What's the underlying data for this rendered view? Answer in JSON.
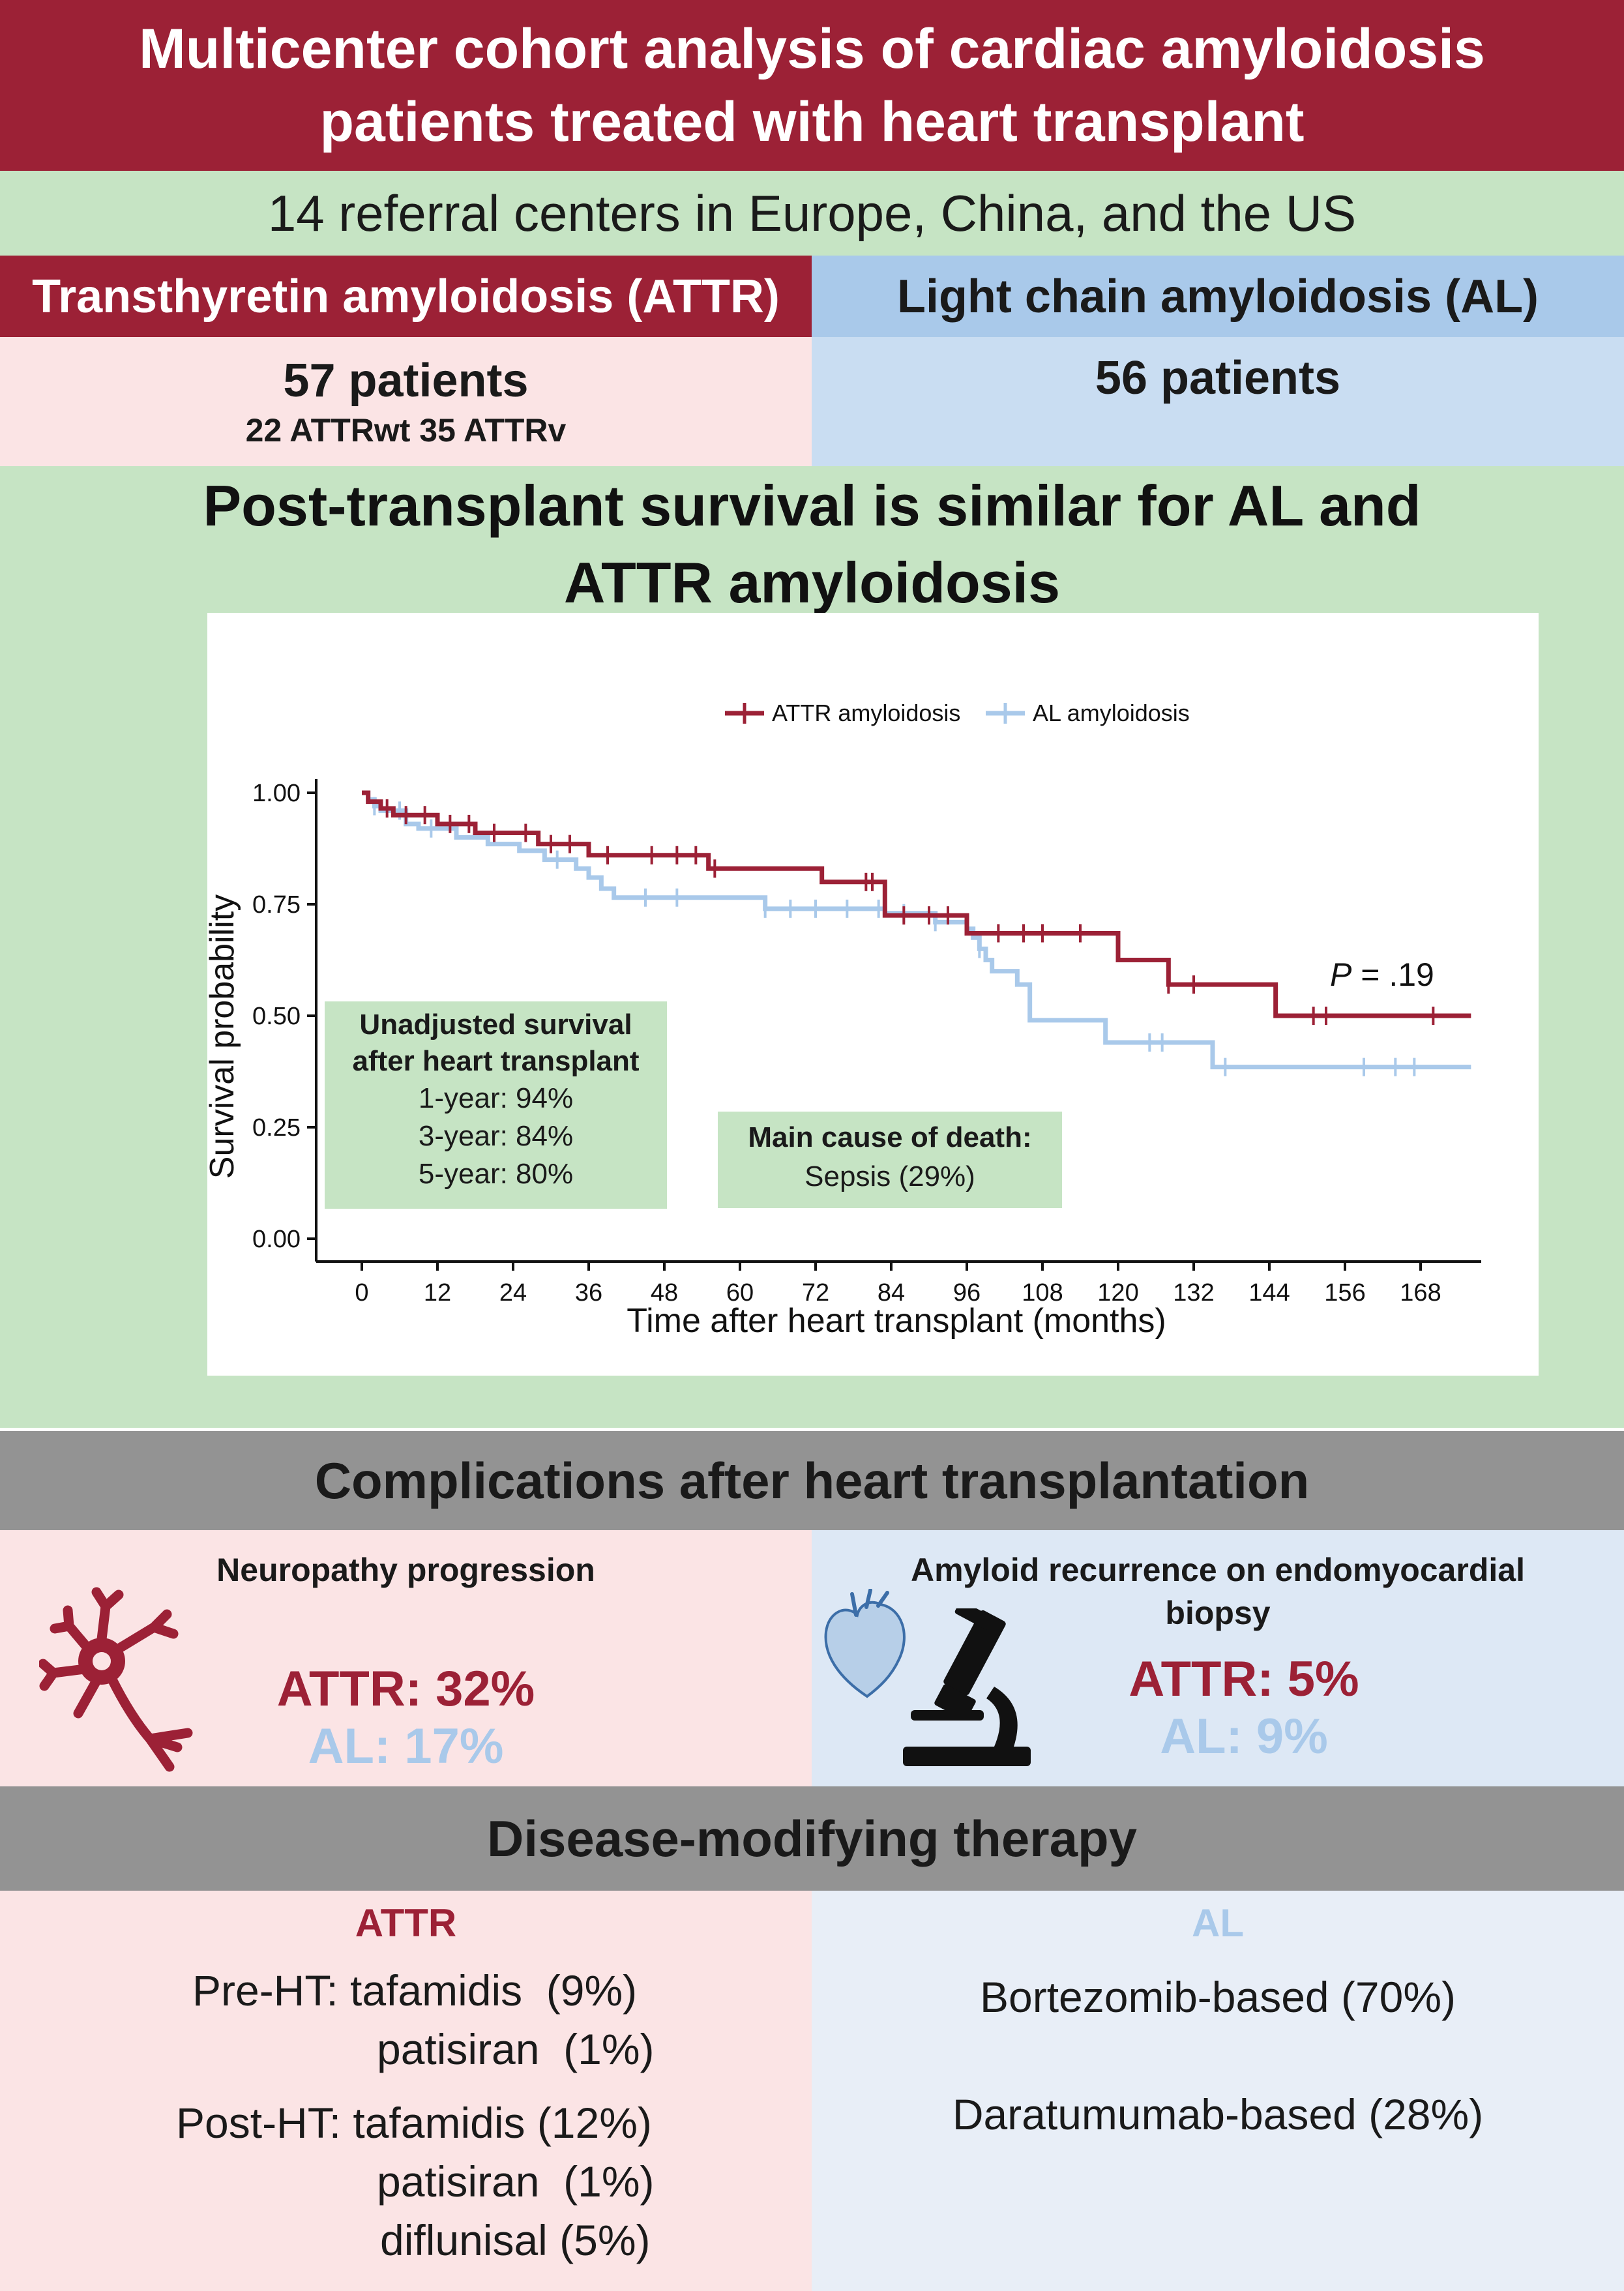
{
  "title": {
    "line1": "Multicenter cohort analysis of cardiac amyloidosis",
    "line2": "patients treated with heart transplant"
  },
  "subtitle": "14 referral centers in Europe, China, and the US",
  "groups": {
    "attr": {
      "header": "Transthyretin amyloidosis (ATTR)",
      "count": "57 patients",
      "breakdown": "22 ATTRwt  35 ATTRv"
    },
    "al": {
      "header": "Light chain amyloidosis (AL)",
      "count": "56 patients"
    }
  },
  "survival": {
    "title_line1": "Post-transplant survival is similar for AL and",
    "title_line2": "ATTR amyloidosis",
    "pvalue_prefix": "P",
    "pvalue_rest": " = .19",
    "unadjusted": {
      "title_line1": "Unadjusted survival",
      "title_line2": "after heart transplant",
      "rows": [
        "1-year: 94%",
        "3-year: 84%",
        "5-year: 80%"
      ]
    },
    "cause": {
      "title": "Main cause of death:",
      "value": "Sepsis (29%)"
    }
  },
  "chart_data": {
    "type": "line",
    "xlabel": "Time after heart transplant (months)",
    "ylabel": "Survival probability",
    "xlim": [
      -10,
      183
    ],
    "ylim": [
      0,
      1
    ],
    "x_ticks": [
      0,
      12,
      24,
      36,
      48,
      60,
      72,
      84,
      96,
      108,
      120,
      132,
      144,
      156,
      168
    ],
    "x_tick_labels": [
      "0",
      "12",
      "24",
      "36",
      "48",
      "60",
      "72",
      "84",
      "96",
      "108",
      "120",
      "132",
      "144",
      "156",
      "168"
    ],
    "y_ticks": [
      0,
      0.25,
      0.5,
      0.75,
      1
    ],
    "y_tick_labels": [
      "0.00",
      "0.25",
      "0.50",
      "0.75",
      "1.00"
    ],
    "legend_position": "top",
    "series": [
      {
        "name": "ATTR amyloidosis",
        "color": "#9c2136",
        "steps": [
          [
            0,
            1.0
          ],
          [
            1,
            0.98
          ],
          [
            3,
            0.965
          ],
          [
            5,
            0.95
          ],
          [
            12,
            0.93
          ],
          [
            18,
            0.91
          ],
          [
            28,
            0.885
          ],
          [
            36,
            0.86
          ],
          [
            55,
            0.83
          ],
          [
            73,
            0.8
          ],
          [
            83,
            0.725
          ],
          [
            96,
            0.685
          ],
          [
            120,
            0.625
          ],
          [
            128,
            0.57
          ],
          [
            145,
            0.5
          ],
          [
            176,
            0.5
          ]
        ],
        "censor": [
          4,
          7,
          10,
          14,
          17,
          21,
          26,
          30,
          33,
          39,
          46,
          50,
          53,
          56,
          80,
          81,
          86,
          90,
          93,
          101,
          105,
          108,
          114,
          128,
          132,
          151,
          153,
          170
        ]
      },
      {
        "name": "AL amyloidosis",
        "color": "#a9c9ea",
        "steps": [
          [
            0,
            1.0
          ],
          [
            1,
            0.985
          ],
          [
            2,
            0.97
          ],
          [
            3,
            0.96
          ],
          [
            7,
            0.93
          ],
          [
            9,
            0.92
          ],
          [
            15,
            0.9
          ],
          [
            20,
            0.885
          ],
          [
            25,
            0.87
          ],
          [
            29,
            0.85
          ],
          [
            34,
            0.83
          ],
          [
            36,
            0.81
          ],
          [
            38,
            0.785
          ],
          [
            40,
            0.765
          ],
          [
            64,
            0.74
          ],
          [
            83,
            0.73
          ],
          [
            91,
            0.71
          ],
          [
            96,
            0.695
          ],
          [
            97,
            0.675
          ],
          [
            98,
            0.65
          ],
          [
            99,
            0.625
          ],
          [
            100,
            0.6
          ],
          [
            104,
            0.57
          ],
          [
            106,
            0.49
          ],
          [
            118,
            0.44
          ],
          [
            135,
            0.385
          ],
          [
            176,
            0.385
          ]
        ],
        "censor": [
          2,
          6,
          11,
          31,
          45,
          50,
          64,
          68,
          72,
          77,
          82,
          86,
          91,
          98,
          125,
          127,
          137,
          159,
          164,
          167
        ]
      }
    ]
  },
  "complications": {
    "header": "Complications after heart transplantation",
    "neuropathy": {
      "title": "Neuropathy progression",
      "attr": "ATTR: 32%",
      "al": "AL: 17%"
    },
    "recurrence": {
      "title_line1": "Amyloid recurrence on endomyocardial",
      "title_line2": "biopsy",
      "attr": "ATTR: 5%",
      "al": "AL: 9%"
    }
  },
  "therapy": {
    "header": "Disease-modifying therapy",
    "attr": {
      "label": "ATTR",
      "lines": [
        "Pre-HT: tafamidis  (9%)",
        "patisiran  (1%)",
        "Post-HT: tafamidis (12%)",
        "patisiran  (1%)",
        "diflunisal (5%)"
      ]
    },
    "al": {
      "label": "AL",
      "lines": [
        "Bortezomib-based (70%)",
        "Daratumumab-based (28%)"
      ]
    }
  },
  "colors": {
    "attr": "#9c2136",
    "al": "#a9c9ea",
    "section_green": "#c6e4c4",
    "grey_header": "#939393"
  },
  "icons": [
    "neuron-icon",
    "heart-icon",
    "microscope-icon"
  ]
}
